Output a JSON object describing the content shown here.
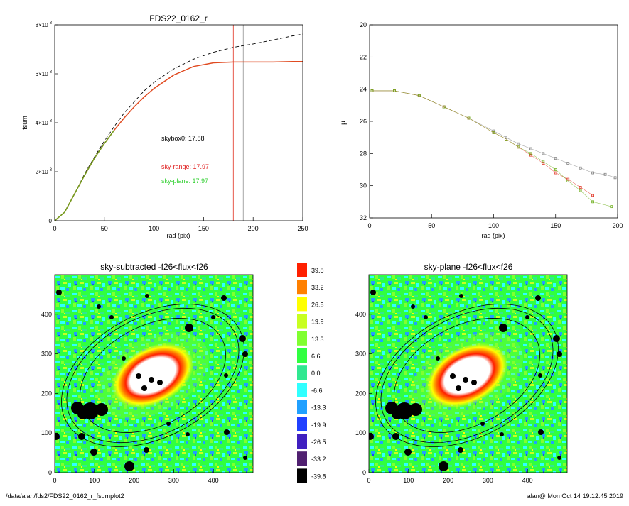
{
  "footer": {
    "path": "/data/alan/fds2/FDS22_0162_r_fsumplot2",
    "stamp": "alan@  Mon Oct 14 19:12:45 2019"
  },
  "chart_data": [
    {
      "type": "line",
      "title": "FDS22_0162_r",
      "xlabel": "rad (pix)",
      "ylabel": "fsum",
      "xlim": [
        0,
        250
      ],
      "ylim": [
        0,
        8e-08
      ],
      "xticks": [
        "0",
        "50",
        "100",
        "150",
        "200",
        "250"
      ],
      "yticks": [
        {
          "mant": "0",
          "exp": ""
        },
        {
          "mant": "2×10",
          "exp": "-8"
        },
        {
          "mant": "4×10",
          "exp": "-8"
        },
        {
          "mant": "6×10",
          "exp": "-8"
        },
        {
          "mant": "8×10",
          "exp": "-8"
        }
      ],
      "vlines": [
        {
          "x": 180,
          "color": "#e03020"
        },
        {
          "x": 190,
          "color": "#909090"
        }
      ],
      "annotations": [
        {
          "text": "skybox0: 17.88",
          "color": "#000000"
        },
        {
          "text": "sky-range: 17.97",
          "color": "#e02020"
        },
        {
          "text": "sky-plane: 17.97",
          "color": "#30d030"
        }
      ],
      "series": [
        {
          "style": "dashed",
          "color": "#000000",
          "x": [
            0,
            10,
            20,
            30,
            40,
            50,
            60,
            70,
            80,
            90,
            100,
            120,
            140,
            160,
            180,
            200,
            220,
            240,
            250
          ],
          "y": [
            0,
            3.5e-09,
            1.1e-08,
            1.9e-08,
            2.6e-08,
            3.25e-08,
            3.85e-08,
            4.4e-08,
            4.85e-08,
            5.3e-08,
            5.65e-08,
            6.2e-08,
            6.6e-08,
            6.88e-08,
            7.08e-08,
            7.22e-08,
            7.38e-08,
            7.55e-08,
            7.62e-08
          ]
        },
        {
          "style": "solid",
          "color": "#e04a20",
          "x": [
            0,
            10,
            20,
            30,
            40,
            50,
            60,
            70,
            80,
            90,
            100,
            120,
            140,
            160,
            180,
            200,
            220,
            240,
            250
          ],
          "y": [
            0,
            3.5e-09,
            1.1e-08,
            1.85e-08,
            2.55e-08,
            3.15e-08,
            3.7e-08,
            4.2e-08,
            4.65e-08,
            5.05e-08,
            5.4e-08,
            5.95e-08,
            6.3e-08,
            6.45e-08,
            6.48e-08,
            6.48e-08,
            6.48e-08,
            6.5e-08,
            6.5e-08
          ]
        },
        {
          "style": "solid",
          "color": "#70a020",
          "x": [
            0,
            10,
            20,
            30,
            40,
            50,
            60
          ],
          "y": [
            0,
            3.5e-09,
            1.1e-08,
            1.85e-08,
            2.55e-08,
            3.15e-08,
            3.7e-08
          ]
        }
      ]
    },
    {
      "type": "scatter",
      "title": "",
      "xlabel": "rad (pix)",
      "ylabel": "μ",
      "xlim": [
        0,
        200
      ],
      "ylim": [
        32,
        20
      ],
      "inverted_y": true,
      "xticks": [
        "0",
        "50",
        "100",
        "150",
        "200"
      ],
      "yticks": [
        "20",
        "22",
        "24",
        "26",
        "28",
        "30",
        "32"
      ],
      "series": [
        {
          "color": "#808080",
          "x": [
            2,
            20,
            40,
            60,
            80,
            100,
            110,
            120,
            130,
            140,
            150,
            160,
            170,
            180,
            190,
            198
          ],
          "y": [
            24.1,
            24.1,
            24.4,
            25.1,
            25.8,
            26.6,
            27.0,
            27.4,
            27.7,
            28.0,
            28.3,
            28.6,
            28.9,
            29.2,
            29.3,
            29.5
          ]
        },
        {
          "color": "#e03020",
          "x": [
            2,
            20,
            40,
            60,
            80,
            100,
            110,
            120,
            130,
            140,
            150,
            160,
            170,
            180
          ],
          "y": [
            24.1,
            24.1,
            24.4,
            25.1,
            25.8,
            26.7,
            27.1,
            27.6,
            28.1,
            28.6,
            29.2,
            29.6,
            30.1,
            30.6
          ]
        },
        {
          "color": "#70b020",
          "x": [
            2,
            20,
            40,
            60,
            80,
            100,
            110,
            120,
            130,
            140,
            150,
            160,
            170,
            180,
            195
          ],
          "y": [
            24.1,
            24.1,
            24.4,
            25.1,
            25.8,
            26.7,
            27.1,
            27.6,
            28.0,
            28.5,
            29.0,
            29.7,
            30.3,
            31.0,
            31.3
          ]
        }
      ]
    },
    {
      "type": "heatmap",
      "title": "sky-subtracted -f26<flux<f26",
      "xlim": [
        0,
        500
      ],
      "ylim": [
        0,
        500
      ],
      "xticks": [
        "0",
        "100",
        "200",
        "300",
        "400"
      ],
      "yticks": [
        "0",
        "100",
        "200",
        "300",
        "400"
      ]
    },
    {
      "type": "heatmap",
      "title": "sky-plane -f26<flux<f26",
      "xlim": [
        0,
        500
      ],
      "ylim": [
        0,
        500
      ],
      "xticks": [
        "0",
        "100",
        "200",
        "300",
        "400"
      ],
      "yticks": [
        "0",
        "100",
        "200",
        "300",
        "400"
      ]
    },
    {
      "type": "table",
      "title": "",
      "colorbar": [
        {
          "label": "39.8",
          "color": "#ff2000"
        },
        {
          "label": "33.2",
          "color": "#ff8000"
        },
        {
          "label": "26.5",
          "color": "#ffff00"
        },
        {
          "label": "19.9",
          "color": "#c8ff20"
        },
        {
          "label": "13.3",
          "color": "#80ff30"
        },
        {
          "label": "6.6",
          "color": "#30ff40"
        },
        {
          "label": "0.0",
          "color": "#30e890"
        },
        {
          "label": "-6.6",
          "color": "#30ffff"
        },
        {
          "label": "-13.3",
          "color": "#20a0ff"
        },
        {
          "label": "-19.9",
          "color": "#2040ff"
        },
        {
          "label": "-26.5",
          "color": "#4020c0"
        },
        {
          "label": "-33.2",
          "color": "#502070"
        },
        {
          "label": "-39.8",
          "color": "#000000"
        }
      ]
    }
  ]
}
